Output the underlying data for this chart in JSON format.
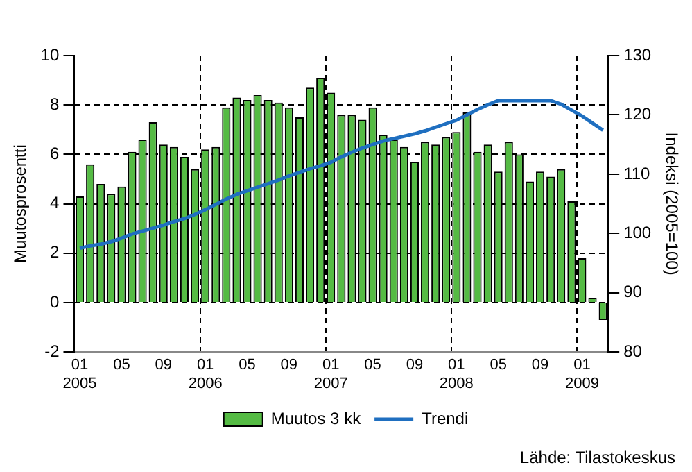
{
  "chart_data": {
    "type": "bar",
    "ylabel": "Muutosprosentti",
    "y2label": "Indeksi (2005=100)",
    "categories": [
      "01 2005",
      null,
      null,
      null,
      "05",
      null,
      null,
      null,
      "09",
      null,
      null,
      null,
      "01 2006",
      null,
      null,
      null,
      "05",
      null,
      null,
      null,
      "09",
      null,
      null,
      null,
      "01 2007",
      null,
      null,
      null,
      "05",
      null,
      null,
      null,
      "09",
      null,
      null,
      null,
      "01 2008",
      null,
      null,
      null,
      "05",
      null,
      null,
      null,
      "09",
      null,
      null,
      null,
      "01 2009",
      null,
      null
    ],
    "series": [
      {
        "name": "Muutos 3 kk",
        "color": "#55bb44",
        "values": [
          4.3,
          5.6,
          4.8,
          4.4,
          4.7,
          6.1,
          6.6,
          7.3,
          6.4,
          6.3,
          5.9,
          5.4,
          6.2,
          6.3,
          7.9,
          8.3,
          8.2,
          8.4,
          8.2,
          8.1,
          7.9,
          7.5,
          8.7,
          9.1,
          8.5,
          7.6,
          7.6,
          7.4,
          7.9,
          6.8,
          6.6,
          6.3,
          5.7,
          6.5,
          6.4,
          6.7,
          6.9,
          7.7,
          6.1,
          6.4,
          5.3,
          6.5,
          6.0,
          4.9,
          5.3,
          5.1,
          5.4,
          4.1,
          1.8,
          0.2,
          -0.7
        ]
      },
      {
        "name": "Trendi",
        "type": "line",
        "axis": "y2",
        "color": "#1f6fc0",
        "values": [
          97.5,
          97.9,
          98.2,
          98.6,
          99.2,
          99.9,
          100.4,
          100.9,
          101.4,
          102.0,
          102.5,
          103.2,
          104.0,
          104.9,
          105.8,
          106.6,
          107.2,
          107.8,
          108.4,
          109.0,
          109.7,
          110.3,
          110.9,
          111.4,
          112.0,
          112.9,
          113.7,
          114.4,
          115.0,
          115.6,
          116.0,
          116.4,
          116.8,
          117.3,
          117.9,
          118.5,
          119.1,
          120.0,
          120.9,
          121.7,
          122.4,
          122.4,
          122.4,
          122.4,
          122.4,
          122.4,
          121.8,
          120.8,
          119.8,
          118.6,
          117.4
        ]
      }
    ],
    "ylim": [
      -2,
      10
    ],
    "yticks": [
      -2,
      0,
      2,
      4,
      6,
      8,
      10
    ],
    "y2lim": [
      80,
      130
    ],
    "y2ticks": [
      80,
      90,
      100,
      110,
      120,
      130
    ],
    "grid": true,
    "legend": "bottom",
    "line_style": "solid",
    "marker": "none",
    "annotations": [
      "Lähde: Tilastokeskus"
    ]
  }
}
